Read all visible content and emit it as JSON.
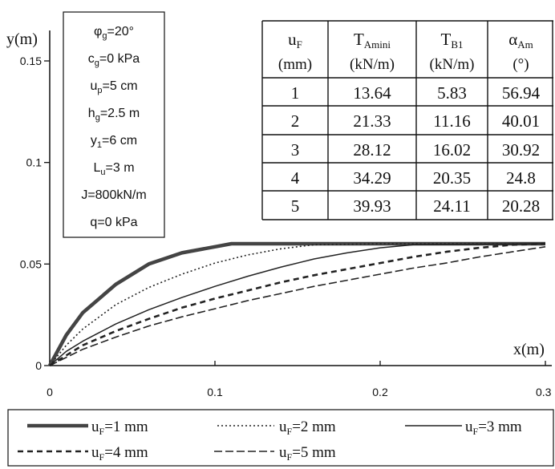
{
  "chart_data": {
    "type": "line",
    "xlabel": "x(m)",
    "ylabel": "y(m)",
    "xlim": [
      0,
      0.3
    ],
    "ylim": [
      0,
      0.15
    ],
    "x_ticks": [
      "0",
      "0.1",
      "0.2",
      "0.3"
    ],
    "y_ticks": [
      "0",
      "0.05",
      "0.1",
      "0.15"
    ],
    "grid": false,
    "legend_position": "bottom",
    "parameters": [
      {
        "sym": "φ",
        "sub": "g",
        "rest": "=20°"
      },
      {
        "sym": "c",
        "sub": "g",
        "rest": "=0 kPa"
      },
      {
        "sym": "u",
        "sub": "p",
        "rest": "=5 cm"
      },
      {
        "sym": "h",
        "sub": "g",
        "rest": "=2.5 m"
      },
      {
        "sym": "y",
        "sub": "1",
        "rest": "=6 cm"
      },
      {
        "sym": "L",
        "sub": "u",
        "rest": "=3 m"
      },
      {
        "sym": "J=800kN/m",
        "sub": "",
        "rest": ""
      },
      {
        "sym": "q=0 kPa",
        "sub": "",
        "rest": ""
      }
    ],
    "table": {
      "headers": [
        {
          "main": "u",
          "sub": "F",
          "unit": "(mm)"
        },
        {
          "main": "T",
          "sub": "Amini",
          "unit": "(kN/m)"
        },
        {
          "main": "T",
          "sub": "B1",
          "unit": "(kN/m)"
        },
        {
          "main": "α",
          "sub": "Am",
          "unit": "(°)"
        }
      ],
      "rows": [
        [
          "1",
          "13.64",
          "5.83",
          "56.94"
        ],
        [
          "2",
          "21.33",
          "11.16",
          "40.01"
        ],
        [
          "3",
          "28.12",
          "16.02",
          "30.92"
        ],
        [
          "4",
          "34.29",
          "20.35",
          "24.8"
        ],
        [
          "5",
          "39.93",
          "24.11",
          "20.28"
        ]
      ]
    },
    "series": [
      {
        "name": "uF=1 mm",
        "main": "u",
        "sub": "F",
        "rest": "=1 mm",
        "style": "thick",
        "x": [
          0,
          0.01,
          0.02,
          0.04,
          0.06,
          0.08,
          0.1,
          0.11,
          0.2,
          0.3
        ],
        "y": [
          0,
          0.015,
          0.026,
          0.04,
          0.05,
          0.0555,
          0.0585,
          0.06,
          0.06,
          0.06
        ]
      },
      {
        "name": "uF=2 mm",
        "main": "u",
        "sub": "F",
        "rest": "=2 mm",
        "style": "dotted",
        "x": [
          0,
          0.01,
          0.02,
          0.04,
          0.06,
          0.08,
          0.1,
          0.12,
          0.14,
          0.16,
          0.2,
          0.3
        ],
        "y": [
          0,
          0.01,
          0.018,
          0.03,
          0.0385,
          0.045,
          0.0505,
          0.0545,
          0.0575,
          0.0595,
          0.06,
          0.06
        ]
      },
      {
        "name": "uF=3 mm",
        "main": "u",
        "sub": "F",
        "rest": "=3 mm",
        "style": "solid",
        "x": [
          0,
          0.01,
          0.02,
          0.04,
          0.06,
          0.08,
          0.1,
          0.12,
          0.14,
          0.16,
          0.18,
          0.2,
          0.22,
          0.3
        ],
        "y": [
          0,
          0.007,
          0.012,
          0.0205,
          0.0275,
          0.0335,
          0.039,
          0.044,
          0.0485,
          0.0525,
          0.0555,
          0.058,
          0.0595,
          0.06
        ]
      },
      {
        "name": "uF=4 mm",
        "main": "u",
        "sub": "F",
        "rest": "=4 mm",
        "style": "dashed-bold",
        "x": [
          0,
          0.02,
          0.04,
          0.06,
          0.08,
          0.1,
          0.12,
          0.14,
          0.16,
          0.18,
          0.2,
          0.22,
          0.24,
          0.26,
          0.28,
          0.3
        ],
        "y": [
          0,
          0.01,
          0.017,
          0.023,
          0.0285,
          0.033,
          0.037,
          0.041,
          0.0445,
          0.0475,
          0.0505,
          0.0535,
          0.056,
          0.058,
          0.0595,
          0.06
        ]
      },
      {
        "name": "uF=5 mm",
        "main": "u",
        "sub": "F",
        "rest": "=5 mm",
        "style": "dashed",
        "x": [
          0,
          0.02,
          0.04,
          0.06,
          0.08,
          0.1,
          0.12,
          0.14,
          0.16,
          0.18,
          0.2,
          0.22,
          0.24,
          0.26,
          0.28,
          0.3
        ],
        "y": [
          0,
          0.008,
          0.014,
          0.0195,
          0.024,
          0.028,
          0.032,
          0.0355,
          0.039,
          0.042,
          0.045,
          0.048,
          0.0505,
          0.0535,
          0.056,
          0.0585
        ]
      }
    ]
  }
}
